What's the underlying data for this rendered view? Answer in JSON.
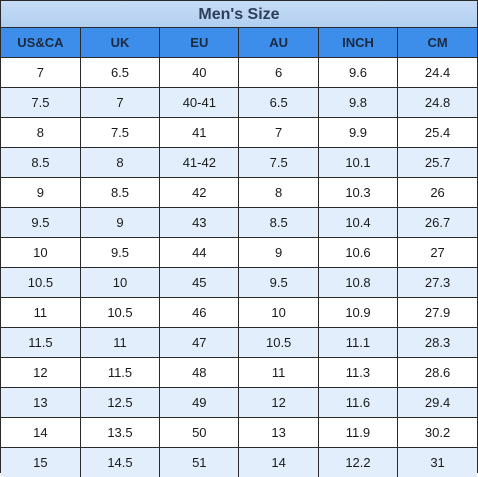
{
  "title": "Men's Size",
  "headers": [
    "US&CA",
    "UK",
    "EU",
    "AU",
    "INCH",
    "CM"
  ],
  "rows": [
    [
      "7",
      "6.5",
      "40",
      "6",
      "9.6",
      "24.4"
    ],
    [
      "7.5",
      "7",
      "40-41",
      "6.5",
      "9.8",
      "24.8"
    ],
    [
      "8",
      "7.5",
      "41",
      "7",
      "9.9",
      "25.4"
    ],
    [
      "8.5",
      "8",
      "41-42",
      "7.5",
      "10.1",
      "25.7"
    ],
    [
      "9",
      "8.5",
      "42",
      "8",
      "10.3",
      "26"
    ],
    [
      "9.5",
      "9",
      "43",
      "8.5",
      "10.4",
      "26.7"
    ],
    [
      "10",
      "9.5",
      "44",
      "9",
      "10.6",
      "27"
    ],
    [
      "10.5",
      "10",
      "45",
      "9.5",
      "10.8",
      "27.3"
    ],
    [
      "11",
      "10.5",
      "46",
      "10",
      "10.9",
      "27.9"
    ],
    [
      "11.5",
      "11",
      "47",
      "10.5",
      "11.1",
      "28.3"
    ],
    [
      "12",
      "11.5",
      "48",
      "11",
      "11.3",
      "28.6"
    ],
    [
      "13",
      "12.5",
      "49",
      "12",
      "11.6",
      "29.4"
    ],
    [
      "14",
      "13.5",
      "50",
      "13",
      "11.9",
      "30.2"
    ],
    [
      "15",
      "14.5",
      "51",
      "14",
      "12.2",
      "31"
    ]
  ],
  "colors": {
    "header_bg": "#3d8dea",
    "title_bg": "#b2cff0",
    "alt_row_bg": "#e2eefc",
    "border": "#2a2a2a"
  }
}
